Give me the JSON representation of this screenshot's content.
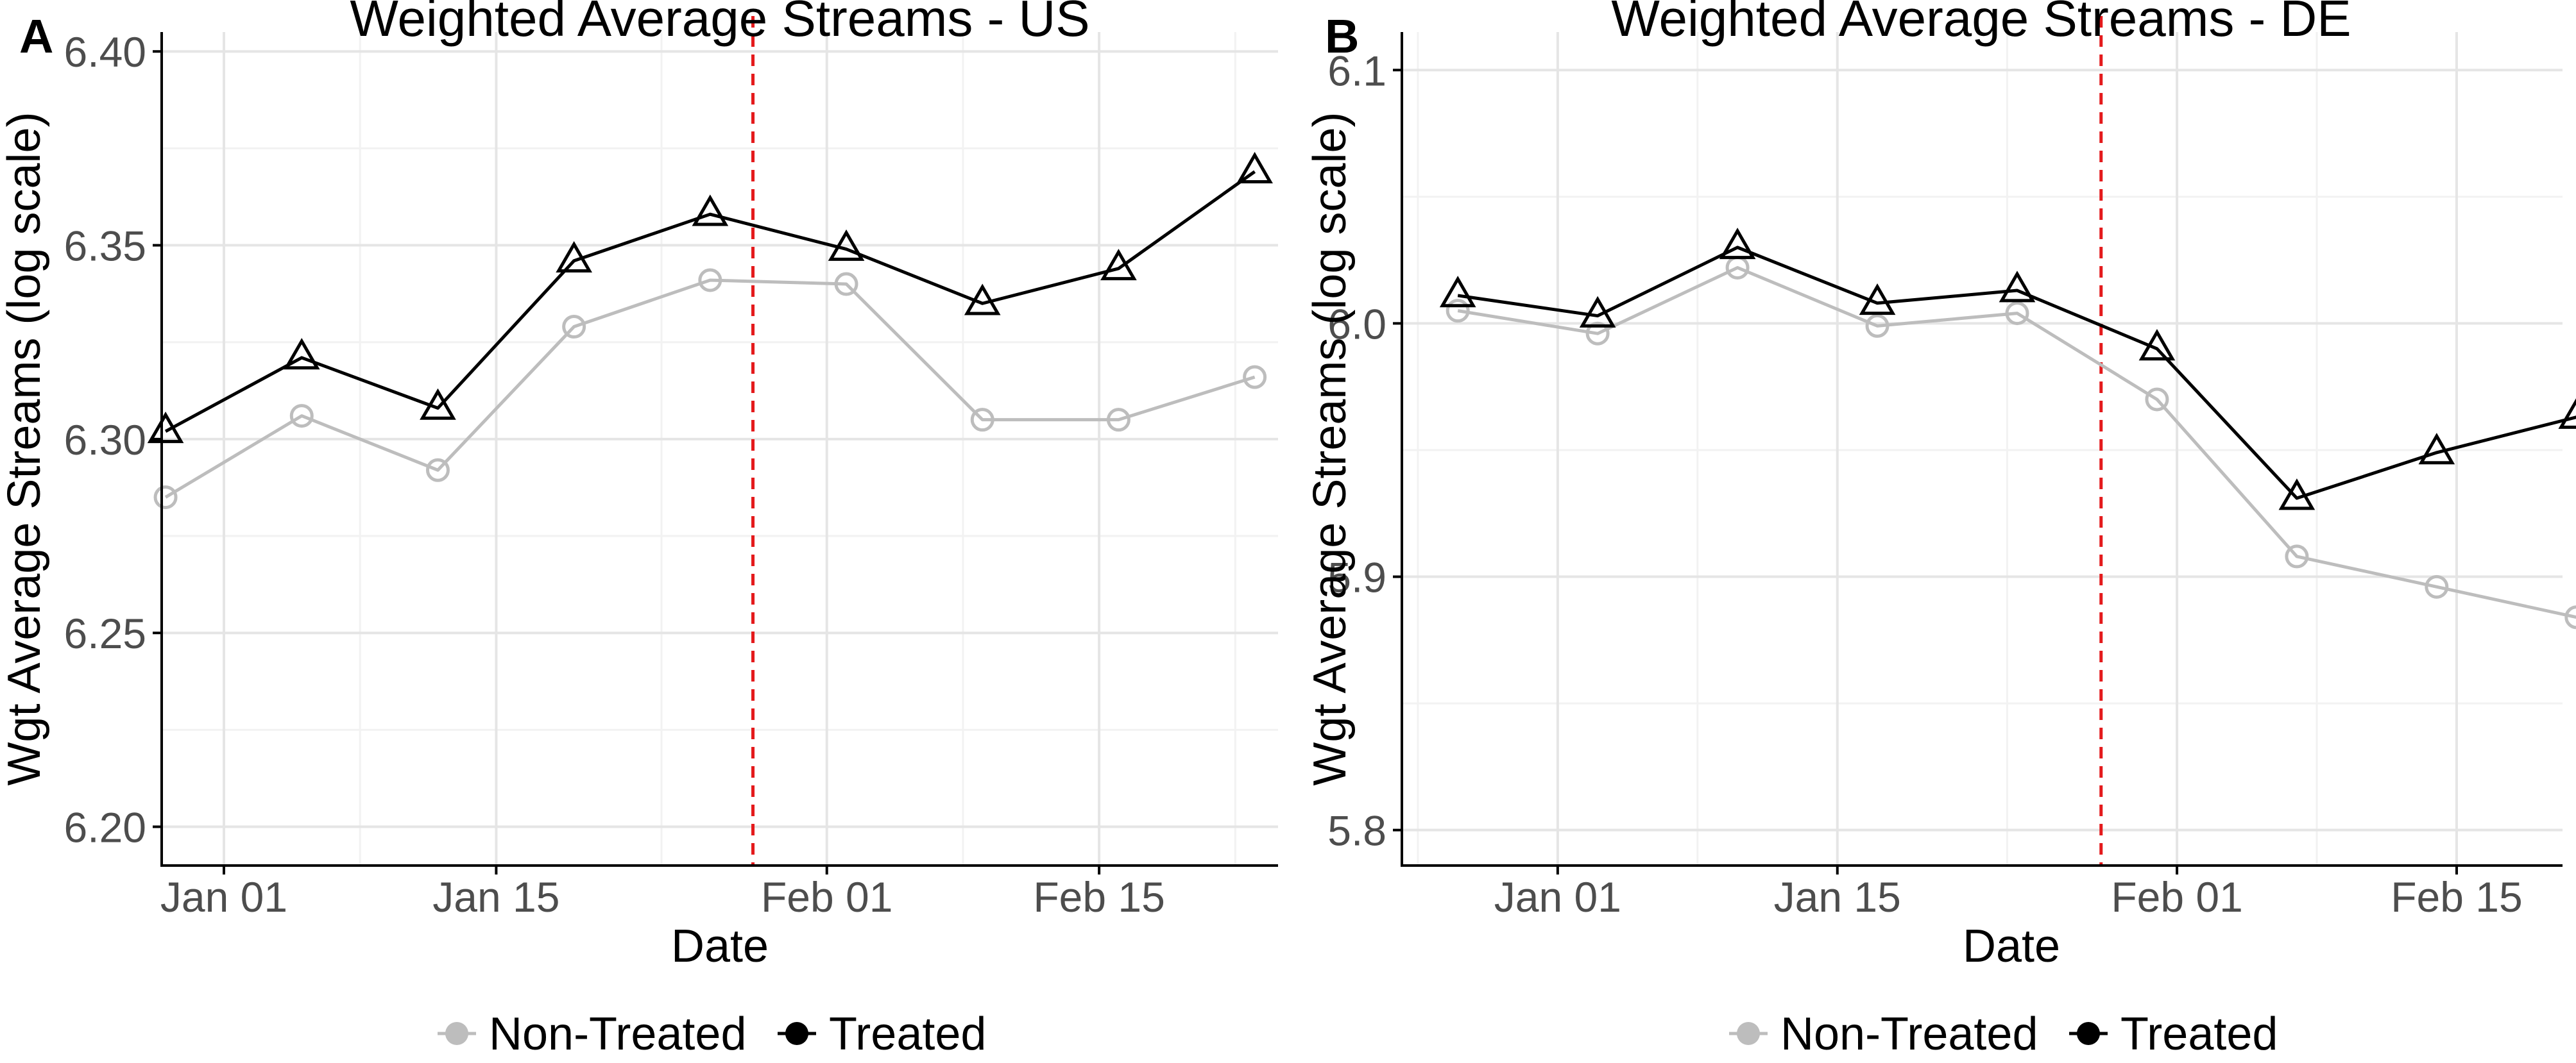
{
  "colors": {
    "treated": "#000000",
    "non_treated": "#bdbdbd",
    "treatment_line": "#e41a1c",
    "grid_major": "#e5e5e5",
    "grid_minor": "#f2f2f2",
    "axis": "#000000",
    "tick_text": "#4d4d4d",
    "text": "#000000"
  },
  "chart_data": [
    {
      "type": "line",
      "panel_label": "A",
      "title": "Weighted Average Streams - US",
      "xlabel": "Date",
      "ylabel": "Wgt Average Streams (log scale)",
      "xlim": [
        -3.2,
        54.2
      ],
      "ylim": [
        6.19,
        6.405
      ],
      "x_ticks": [
        {
          "x": 0,
          "label": "Jan 01"
        },
        {
          "x": 14,
          "label": "Jan 15"
        },
        {
          "x": 31,
          "label": "Feb 01"
        },
        {
          "x": 45,
          "label": "Feb 15"
        }
      ],
      "x_minor_ticks": [
        7,
        22.5,
        38,
        52
      ],
      "y_ticks": [
        {
          "y": 6.2,
          "label": "6.20"
        },
        {
          "y": 6.25,
          "label": "6.25"
        },
        {
          "y": 6.3,
          "label": "6.30"
        },
        {
          "y": 6.35,
          "label": "6.35"
        },
        {
          "y": 6.4,
          "label": "6.40"
        }
      ],
      "y_minor_ticks": [
        6.225,
        6.275,
        6.325,
        6.375
      ],
      "treatment_x": 27.2,
      "series": [
        {
          "name": "Non-Treated",
          "marker": "circle",
          "x": [
            -3,
            4,
            11,
            18,
            25,
            32,
            39,
            46,
            53
          ],
          "values": [
            6.285,
            6.306,
            6.292,
            6.329,
            6.341,
            6.34,
            6.305,
            6.305,
            6.316
          ]
        },
        {
          "name": "Treated",
          "marker": "triangle",
          "x": [
            -3,
            4,
            11,
            18,
            25,
            32,
            39,
            46,
            53
          ],
          "values": [
            6.302,
            6.321,
            6.308,
            6.346,
            6.358,
            6.349,
            6.335,
            6.344,
            6.369
          ]
        }
      ],
      "legend": {
        "position": "bottom",
        "labels": [
          "Non-Treated",
          "Treated"
        ]
      }
    },
    {
      "type": "line",
      "panel_label": "B",
      "title": "Weighted Average Streams - DE",
      "xlabel": "Date",
      "ylabel": "Wgt Average Streams (log scale)",
      "xlim": [
        -7.8,
        50.3
      ],
      "ylim": [
        5.786,
        6.115
      ],
      "x_ticks": [
        {
          "x": 0,
          "label": "Jan 01"
        },
        {
          "x": 14,
          "label": "Jan 15"
        },
        {
          "x": 31,
          "label": "Feb 01"
        },
        {
          "x": 45,
          "label": "Feb 15"
        }
      ],
      "x_minor_ticks": [
        -7,
        7,
        22.5,
        38
      ],
      "y_ticks": [
        {
          "y": 5.8,
          "label": "5.8"
        },
        {
          "y": 5.9,
          "label": "5.9"
        },
        {
          "y": 6.0,
          "label": "6.0"
        },
        {
          "y": 6.1,
          "label": "6.1"
        }
      ],
      "y_minor_ticks": [
        5.85,
        5.95,
        6.05
      ],
      "treatment_x": 27.2,
      "series": [
        {
          "name": "Non-Treated",
          "marker": "circle",
          "x": [
            -5,
            2,
            9,
            16,
            23,
            30,
            37,
            44,
            51
          ],
          "values": [
            6.005,
            5.996,
            6.022,
            5.999,
            6.004,
            5.97,
            5.908,
            5.896,
            5.884
          ]
        },
        {
          "name": "Treated",
          "marker": "triangle",
          "x": [
            -5,
            2,
            9,
            16,
            23,
            30,
            37,
            44,
            51
          ],
          "values": [
            6.011,
            6.003,
            6.03,
            6.008,
            6.013,
            5.99,
            5.931,
            5.949,
            5.963
          ]
        }
      ],
      "legend": {
        "position": "bottom",
        "labels": [
          "Non-Treated",
          "Treated"
        ]
      }
    }
  ]
}
